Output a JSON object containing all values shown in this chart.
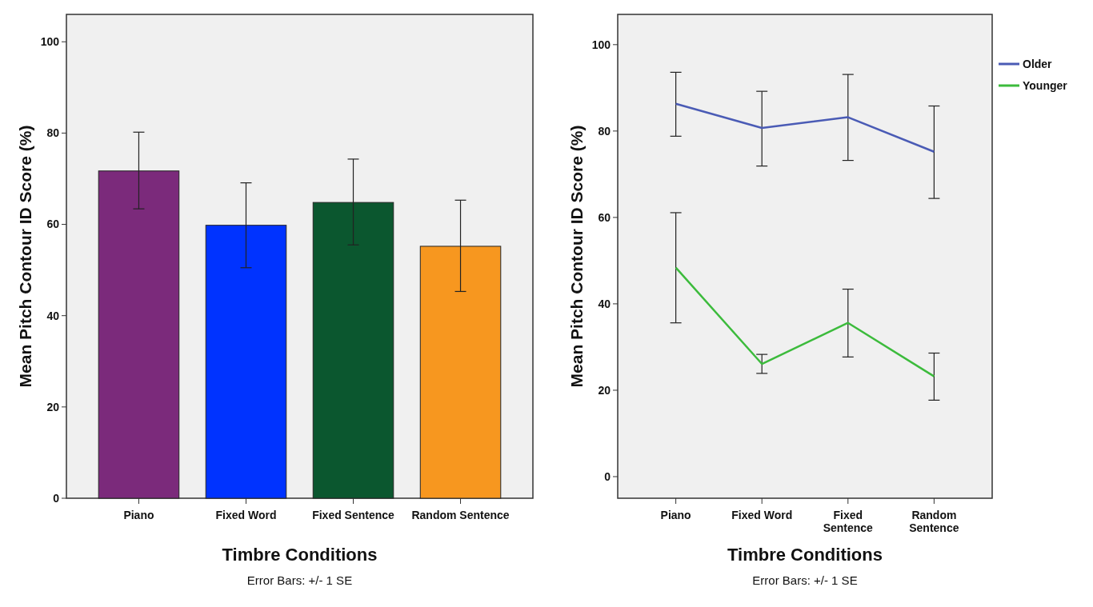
{
  "chart_data": [
    {
      "type": "bar",
      "xlabel": "Timbre Conditions",
      "ylabel": "Mean Pitch Contour ID Score (%)",
      "categories": [
        "Piano",
        "Fixed Word",
        "Fixed Sentence",
        "Random Sentence"
      ],
      "values": [
        71.7,
        59.8,
        64.8,
        55.2
      ],
      "colors": [
        "#7b2a7b",
        "#0033ff",
        "#0b572f",
        "#f7971f"
      ],
      "errors": [
        [
          63.4,
          80.2
        ],
        [
          50.5,
          69.1
        ],
        [
          55.5,
          74.3
        ],
        [
          45.3,
          65.3
        ]
      ],
      "ylim": [
        0,
        106
      ],
      "yticks": [
        0,
        20,
        40,
        60,
        80,
        100
      ],
      "grid": false,
      "legend": false,
      "annotations": [
        "Error Bars: +/- 1 SE"
      ]
    },
    {
      "type": "line",
      "xlabel": "Timbre Conditions",
      "ylabel": "Mean Pitch Contour ID Score (%)",
      "categories": [
        "Piano",
        "Fixed Word",
        "Fixed Sentence",
        "Random Sentence"
      ],
      "series": [
        {
          "name": "Older",
          "color": "#4a5bb5",
          "values": [
            86.3,
            80.7,
            83.2,
            75.2
          ],
          "errors": [
            [
              78.8,
              93.6
            ],
            [
              71.9,
              89.2
            ],
            [
              73.2,
              93.1
            ],
            [
              64.4,
              85.8
            ]
          ]
        },
        {
          "name": "Younger",
          "color": "#3cbb3c",
          "values": [
            48.4,
            26.1,
            35.6,
            23.2
          ],
          "errors": [
            [
              35.6,
              61.1
            ],
            [
              23.9,
              28.3
            ],
            [
              27.7,
              43.4
            ],
            [
              17.7,
              28.6
            ]
          ]
        }
      ],
      "ylim": [
        -5,
        107
      ],
      "yticks": [
        0,
        20,
        40,
        60,
        80,
        100
      ],
      "grid": false,
      "legend": "right",
      "marker": "none",
      "line_style": "solid",
      "annotations": [
        "Error Bars: +/- 1 SE"
      ]
    }
  ]
}
